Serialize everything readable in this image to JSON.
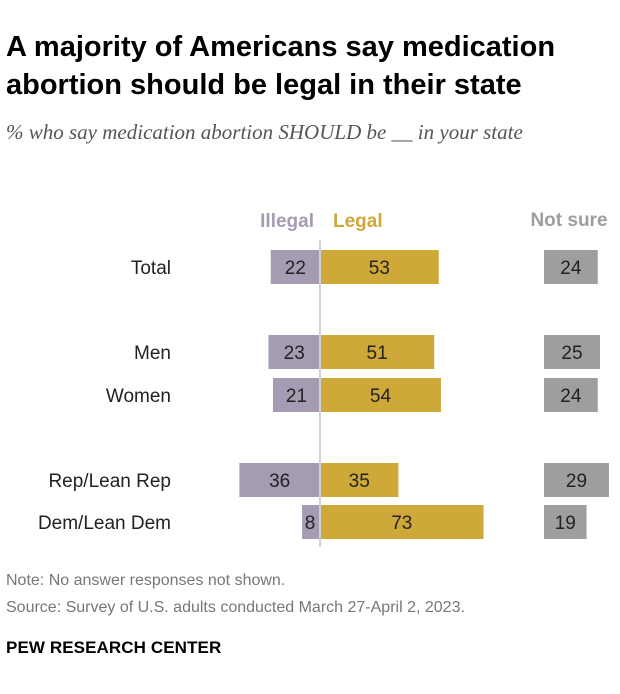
{
  "title": "A majority of Americans say medication abortion should be legal in their state",
  "subtitle": "% who say medication abortion SHOULD be __ in your state",
  "note": "Note: No answer responses not shown.",
  "source": "Source: Survey of U.S. adults conducted March 27-April 2, 2023.",
  "brand": "PEW RESEARCH CENTER",
  "chart_data": {
    "type": "bar",
    "orientation": "horizontal",
    "layout": "diverging",
    "categories": [
      "Total",
      "Men",
      "Women",
      "Rep/Lean Rep",
      "Dem/Lean Dem"
    ],
    "series": [
      {
        "name": "Illegal",
        "values": [
          22,
          23,
          21,
          36,
          8
        ],
        "color": "#a59bb2",
        "direction": "left"
      },
      {
        "name": "Legal",
        "values": [
          53,
          51,
          54,
          35,
          73
        ],
        "color": "#cfa83a",
        "direction": "right"
      },
      {
        "name": "Not sure",
        "values": [
          24,
          25,
          24,
          29,
          19
        ],
        "color": "#9e9e9e",
        "direction": "right"
      }
    ],
    "grid": false,
    "legend": "top"
  }
}
